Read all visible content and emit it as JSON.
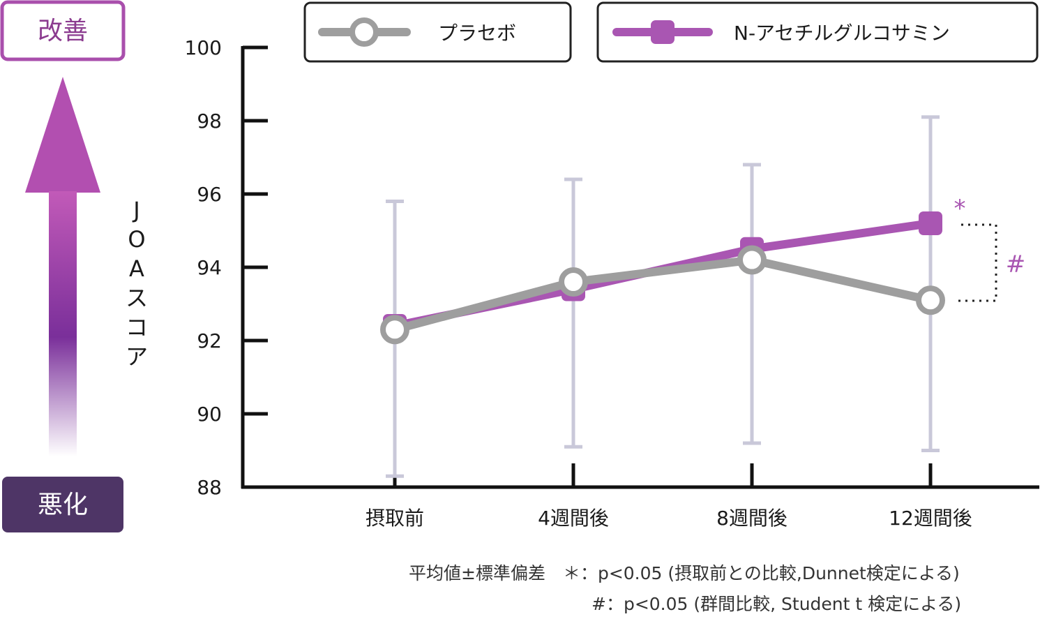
{
  "improve_label": "改善",
  "worsen_label": "悪化",
  "colors": {
    "placebo": "#9e9e9e",
    "nag": "#a956b2",
    "errorbar": "#c9c8d9",
    "improve_border": "#a94fac",
    "worsen_bg": "#4e3566"
  },
  "chart_data": {
    "type": "line",
    "title": "",
    "ylabel": "JOAスコア",
    "xlabel": "",
    "ylim": [
      88,
      100
    ],
    "yticks": [
      88,
      90,
      92,
      94,
      96,
      98,
      100
    ],
    "categories": [
      "摂取前",
      "4週間後",
      "8週間後",
      "12週間後"
    ],
    "series": [
      {
        "name": "プラセボ",
        "values": [
          92.3,
          93.6,
          94.2,
          93.1
        ],
        "marker": "circle",
        "color": "#9e9e9e"
      },
      {
        "name": "N-アセチルグルコサミン",
        "values": [
          92.4,
          93.4,
          94.5,
          95.2
        ],
        "marker": "square",
        "color": "#a956b2"
      }
    ],
    "error_bars": [
      {
        "low": 88.3,
        "high": 95.8
      },
      {
        "low": 89.1,
        "high": 96.4
      },
      {
        "low": 89.2,
        "high": 96.8
      },
      {
        "low": 89.0,
        "high": 98.1
      }
    ],
    "significance": {
      "star": "*",
      "hash": "#"
    },
    "notes": [
      "平均値±標準偏差　＊：p<0.05 (摂取前との比較,Dunnet検定による)",
      "#：p<0.05 (群間比較, Student t 検定による)"
    ],
    "legend_position": "top"
  }
}
